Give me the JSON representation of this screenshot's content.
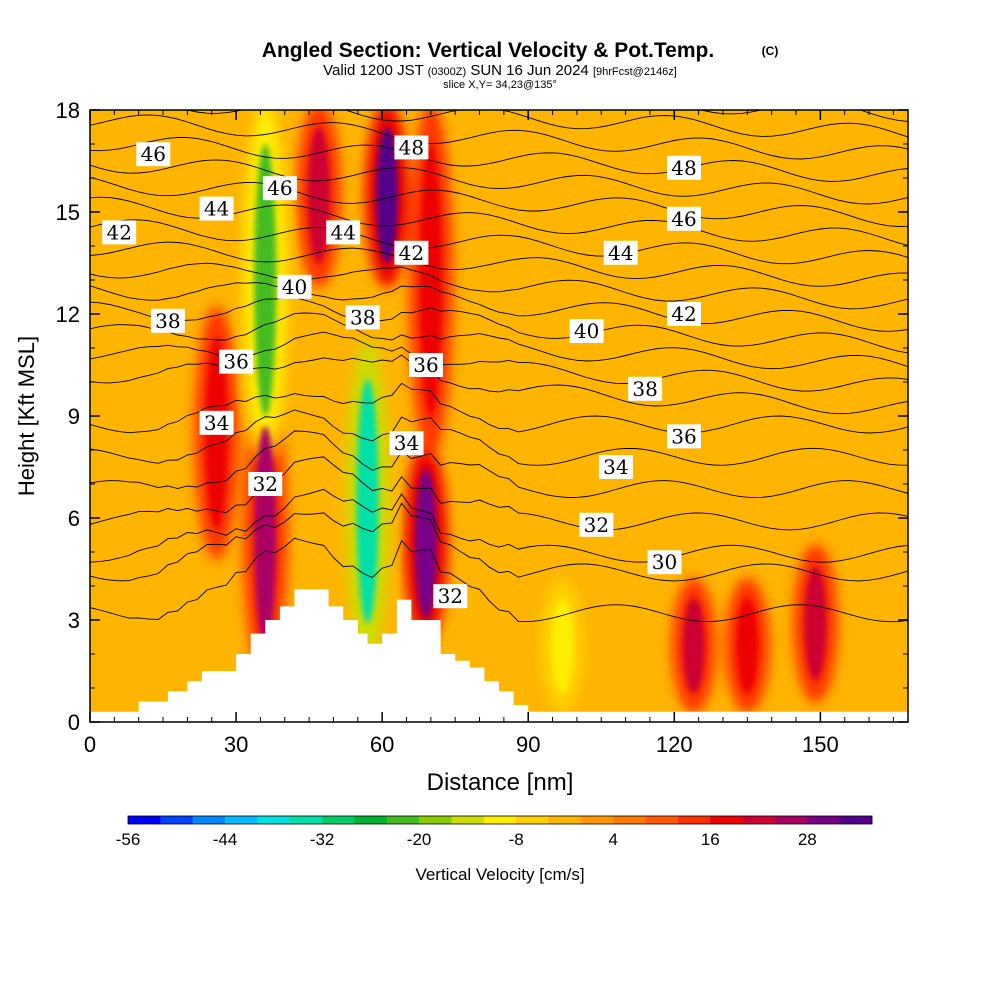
{
  "header": {
    "title": "Angled Section: Vertical Velocity & Pot.Temp.",
    "title_suffix": "(C)",
    "valid_prefix": "Valid 1200 JST",
    "valid_utc": "(0300Z)",
    "valid_date": "SUN 16 Jun 2024",
    "forecast": "[9hrFcst@2146z]",
    "slice": "slice X,Y= 34,23@135°"
  },
  "colorbar": {
    "label": "Vertical Velocity [cm/s]",
    "tick_labels": [
      "-56",
      "-44",
      "-32",
      "-20",
      "-8",
      "4",
      "16",
      "28"
    ],
    "colors": [
      "#0000ff",
      "#0044ff",
      "#0088ff",
      "#00bbff",
      "#00e0e0",
      "#00e0a8",
      "#00cc66",
      "#00b030",
      "#44bb22",
      "#88cc00",
      "#ccdd00",
      "#ffee00",
      "#ffd000",
      "#ffb400",
      "#ff9600",
      "#ff7800",
      "#ff5a00",
      "#ff3000",
      "#ee0000",
      "#cc0033",
      "#aa0066",
      "#770088",
      "#55008a"
    ]
  },
  "chart_data": {
    "type": "heatmap",
    "title": "Angled Section: Vertical Velocity & Pot.Temp.",
    "xlabel": "Distance [nm]",
    "ylabel": "Height [Kft MSL]",
    "xlim": [
      0,
      168
    ],
    "ylim": [
      0,
      18
    ],
    "x_ticks": [
      0,
      30,
      60,
      90,
      120,
      150
    ],
    "y_ticks": [
      0,
      3,
      6,
      9,
      12,
      15,
      18
    ],
    "terrain_profile": {
      "x": [
        0,
        10,
        10,
        16,
        16,
        20,
        20,
        23,
        23,
        30,
        30,
        33,
        33,
        36,
        36,
        39,
        39,
        42,
        42,
        49,
        49,
        52,
        52,
        55,
        55,
        57,
        57,
        60,
        60,
        63,
        63,
        66,
        66,
        72,
        72,
        75,
        75,
        78,
        78,
        81,
        81,
        84,
        84,
        87,
        87,
        90,
        90,
        168
      ],
      "y": [
        0.3,
        0.3,
        0.6,
        0.6,
        0.9,
        0.9,
        1.2,
        1.2,
        1.5,
        1.5,
        2.0,
        2.0,
        2.6,
        2.6,
        3.0,
        3.0,
        3.4,
        3.4,
        3.9,
        3.9,
        3.4,
        3.4,
        3.0,
        3.0,
        2.6,
        2.6,
        2.3,
        2.3,
        2.6,
        2.6,
        3.6,
        3.6,
        3.0,
        3.0,
        2.0,
        2.0,
        1.8,
        1.8,
        1.6,
        1.6,
        1.2,
        1.2,
        0.9,
        0.9,
        0.5,
        0.5,
        0.3,
        0.3
      ]
    },
    "vertical_velocity_features": [
      {
        "x": 36,
        "y_range": [
          1.5,
          9.5
        ],
        "value": 22
      },
      {
        "x": 26,
        "y_range": [
          5,
          12
        ],
        "value": 12
      },
      {
        "x": 36,
        "y_range": [
          8,
          18
        ],
        "value": -28
      },
      {
        "x": 47,
        "y_range": [
          13,
          18
        ],
        "value": 18
      },
      {
        "x": 57,
        "y_range": [
          2,
          11
        ],
        "value": -40
      },
      {
        "x": 61,
        "y_range": [
          13,
          18
        ],
        "value": 28
      },
      {
        "x": 69,
        "y_range": [
          2.5,
          8
        ],
        "value": 26
      },
      {
        "x": 70,
        "y_range": [
          8,
          18
        ],
        "value": 14
      },
      {
        "x": 124,
        "y_range": [
          0.5,
          4
        ],
        "value": 16
      },
      {
        "x": 135,
        "y_range": [
          0.5,
          4
        ],
        "value": 14
      },
      {
        "x": 149,
        "y_range": [
          0.8,
          5
        ],
        "value": 16
      },
      {
        "x": 97,
        "y_range": [
          0.5,
          4
        ],
        "value": -16
      }
    ],
    "theta_contours": [
      {
        "level": 30,
        "label_at": [
          118,
          4.7
        ]
      },
      {
        "level": 32,
        "label_at": [
          36,
          7.0
        ]
      },
      {
        "level": 32,
        "label_at": [
          104,
          5.8
        ]
      },
      {
        "level": 32,
        "label_at": [
          74,
          3.7
        ]
      },
      {
        "level": 34,
        "label_at": [
          26,
          8.8
        ]
      },
      {
        "level": 34,
        "label_at": [
          65,
          8.2
        ]
      },
      {
        "level": 34,
        "label_at": [
          108,
          7.5
        ]
      },
      {
        "level": 36,
        "label_at": [
          30,
          10.6
        ]
      },
      {
        "level": 36,
        "label_at": [
          69,
          10.5
        ]
      },
      {
        "level": 36,
        "label_at": [
          122,
          8.4
        ]
      },
      {
        "level": 38,
        "label_at": [
          16,
          11.8
        ]
      },
      {
        "level": 38,
        "label_at": [
          56,
          11.9
        ]
      },
      {
        "level": 38,
        "label_at": [
          114,
          9.8
        ]
      },
      {
        "level": 40,
        "label_at": [
          42,
          12.8
        ]
      },
      {
        "level": 40,
        "label_at": [
          102,
          11.5
        ]
      },
      {
        "level": 42,
        "label_at": [
          6,
          14.4
        ]
      },
      {
        "level": 42,
        "label_at": [
          66,
          13.8
        ]
      },
      {
        "level": 42,
        "label_at": [
          122,
          12.0
        ]
      },
      {
        "level": 44,
        "label_at": [
          26,
          15.1
        ]
      },
      {
        "level": 44,
        "label_at": [
          52,
          14.4
        ]
      },
      {
        "level": 44,
        "label_at": [
          109,
          13.8
        ]
      },
      {
        "level": 46,
        "label_at": [
          13,
          16.7
        ]
      },
      {
        "level": 46,
        "label_at": [
          39,
          15.7
        ]
      },
      {
        "level": 46,
        "label_at": [
          122,
          14.8
        ]
      },
      {
        "level": 48,
        "label_at": [
          66,
          16.9
        ]
      },
      {
        "level": 48,
        "label_at": [
          122,
          16.3
        ]
      }
    ]
  }
}
